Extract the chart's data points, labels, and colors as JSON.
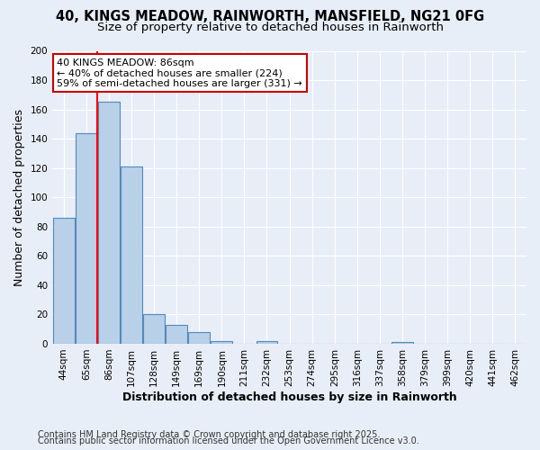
{
  "title_line1": "40, KINGS MEADOW, RAINWORTH, MANSFIELD, NG21 0FG",
  "title_line2": "Size of property relative to detached houses in Rainworth",
  "xlabel": "Distribution of detached houses by size in Rainworth",
  "ylabel": "Number of detached properties",
  "bar_values": [
    86,
    144,
    165,
    121,
    20,
    13,
    8,
    2,
    0,
    2,
    0,
    0,
    0,
    0,
    0,
    1,
    0,
    0,
    0,
    0,
    0
  ],
  "categories": [
    "44sqm",
    "65sqm",
    "86sqm",
    "107sqm",
    "128sqm",
    "149sqm",
    "169sqm",
    "190sqm",
    "211sqm",
    "232sqm",
    "253sqm",
    "274sqm",
    "295sqm",
    "316sqm",
    "337sqm",
    "358sqm",
    "379sqm",
    "399sqm",
    "420sqm",
    "441sqm",
    "462sqm"
  ],
  "bar_color": "#b8d0e8",
  "bar_edge_color": "#5588bb",
  "bg_color": "#e8eef8",
  "grid_color": "#ffffff",
  "red_line_index": 2,
  "annotation_line1": "40 KINGS MEADOW: 86sqm",
  "annotation_line2": "← 40% of detached houses are smaller (224)",
  "annotation_line3": "59% of semi-detached houses are larger (331) →",
  "annotation_box_color": "#ffffff",
  "annotation_box_edge": "#cc0000",
  "ylim": [
    0,
    200
  ],
  "yticks": [
    0,
    20,
    40,
    60,
    80,
    100,
    120,
    140,
    160,
    180,
    200
  ],
  "footnote_line1": "Contains HM Land Registry data © Crown copyright and database right 2025.",
  "footnote_line2": "Contains public sector information licensed under the Open Government Licence v3.0.",
  "title_fontsize": 10.5,
  "subtitle_fontsize": 9.5,
  "axis_label_fontsize": 9,
  "tick_fontsize": 7.5,
  "annotation_fontsize": 8,
  "footnote_fontsize": 7
}
